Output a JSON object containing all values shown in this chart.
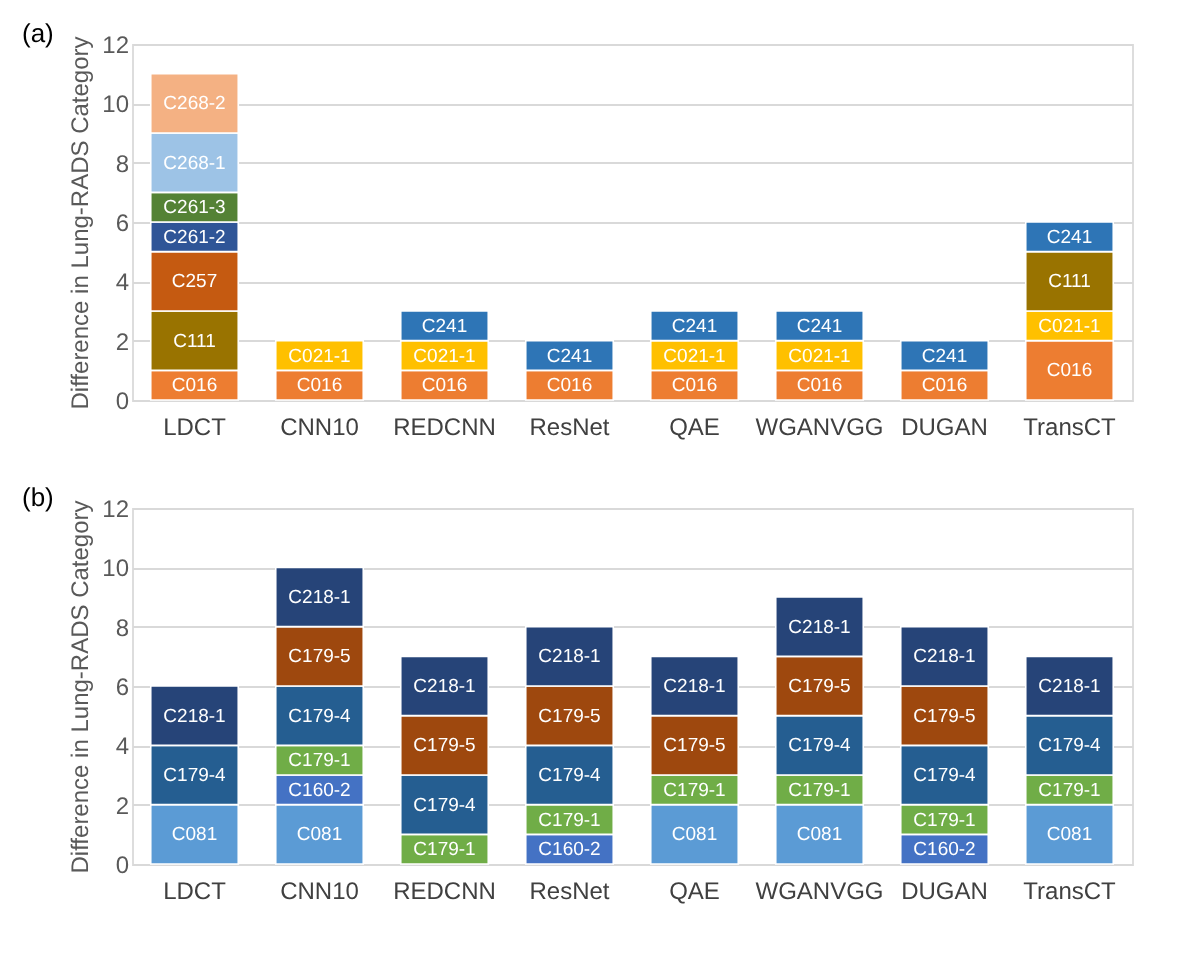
{
  "chart_data": [
    {
      "type": "bar",
      "title": "(a)",
      "ylabel": "Difference in Lung-RADS Category",
      "stacked": true,
      "grid": "y",
      "legend": false,
      "ylim": [
        0,
        12
      ],
      "yticks": [
        0,
        2,
        4,
        6,
        8,
        10,
        12
      ],
      "categories": [
        "LDCT",
        "CNN10",
        "REDCNN",
        "ResNet",
        "QAE",
        "WGANVGG",
        "DUGAN",
        "TransCT"
      ],
      "series": [
        {
          "name": "C016",
          "color": "#ed7d31",
          "values": [
            1,
            1,
            1,
            1,
            1,
            1,
            1,
            2
          ]
        },
        {
          "name": "C021-1",
          "color": "#ffc000",
          "values": [
            null,
            1,
            1,
            null,
            1,
            1,
            null,
            1
          ]
        },
        {
          "name": "C111",
          "color": "#997300",
          "values": [
            2,
            null,
            null,
            null,
            null,
            null,
            null,
            2
          ]
        },
        {
          "name": "C257",
          "color": "#c55a11",
          "values": [
            2,
            null,
            null,
            null,
            null,
            null,
            null,
            null
          ]
        },
        {
          "name": "C261-2",
          "color": "#2f5597",
          "values": [
            1,
            null,
            null,
            null,
            null,
            null,
            null,
            null
          ]
        },
        {
          "name": "C261-3",
          "color": "#548235",
          "values": [
            1,
            null,
            null,
            null,
            null,
            null,
            null,
            null
          ]
        },
        {
          "name": "C268-1",
          "color": "#9dc3e6",
          "values": [
            2,
            null,
            null,
            null,
            null,
            null,
            null,
            null
          ]
        },
        {
          "name": "C268-2",
          "color": "#f4b183",
          "values": [
            2,
            null,
            null,
            null,
            null,
            null,
            null,
            null
          ]
        },
        {
          "name": "C241",
          "color": "#2e75b6",
          "values": [
            null,
            null,
            1,
            1,
            1,
            1,
            1,
            1
          ]
        }
      ]
    },
    {
      "type": "bar",
      "title": "(b)",
      "ylabel": "Difference in Lung-RADS Category",
      "stacked": true,
      "grid": "y",
      "legend": false,
      "ylim": [
        0,
        12
      ],
      "yticks": [
        0,
        2,
        4,
        6,
        8,
        10,
        12
      ],
      "categories": [
        "LDCT",
        "CNN10",
        "REDCNN",
        "ResNet",
        "QAE",
        "WGANVGG",
        "DUGAN",
        "TransCT"
      ],
      "series": [
        {
          "name": "C081",
          "color": "#5b9bd5",
          "values": [
            2,
            2,
            null,
            null,
            2,
            2,
            null,
            2
          ]
        },
        {
          "name": "C160-2",
          "color": "#4472c4",
          "values": [
            null,
            1,
            null,
            1,
            null,
            null,
            1,
            null
          ]
        },
        {
          "name": "C179-1",
          "color": "#70ad47",
          "values": [
            null,
            1,
            1,
            1,
            1,
            1,
            1,
            1
          ]
        },
        {
          "name": "C179-4",
          "color": "#255e91",
          "values": [
            2,
            2,
            2,
            2,
            null,
            2,
            2,
            2
          ]
        },
        {
          "name": "C179-5",
          "color": "#9e480e",
          "values": [
            null,
            2,
            2,
            2,
            2,
            2,
            2,
            null
          ]
        },
        {
          "name": "C218-1",
          "color": "#264478",
          "values": [
            2,
            2,
            2,
            2,
            2,
            2,
            2,
            2
          ]
        }
      ]
    }
  ]
}
